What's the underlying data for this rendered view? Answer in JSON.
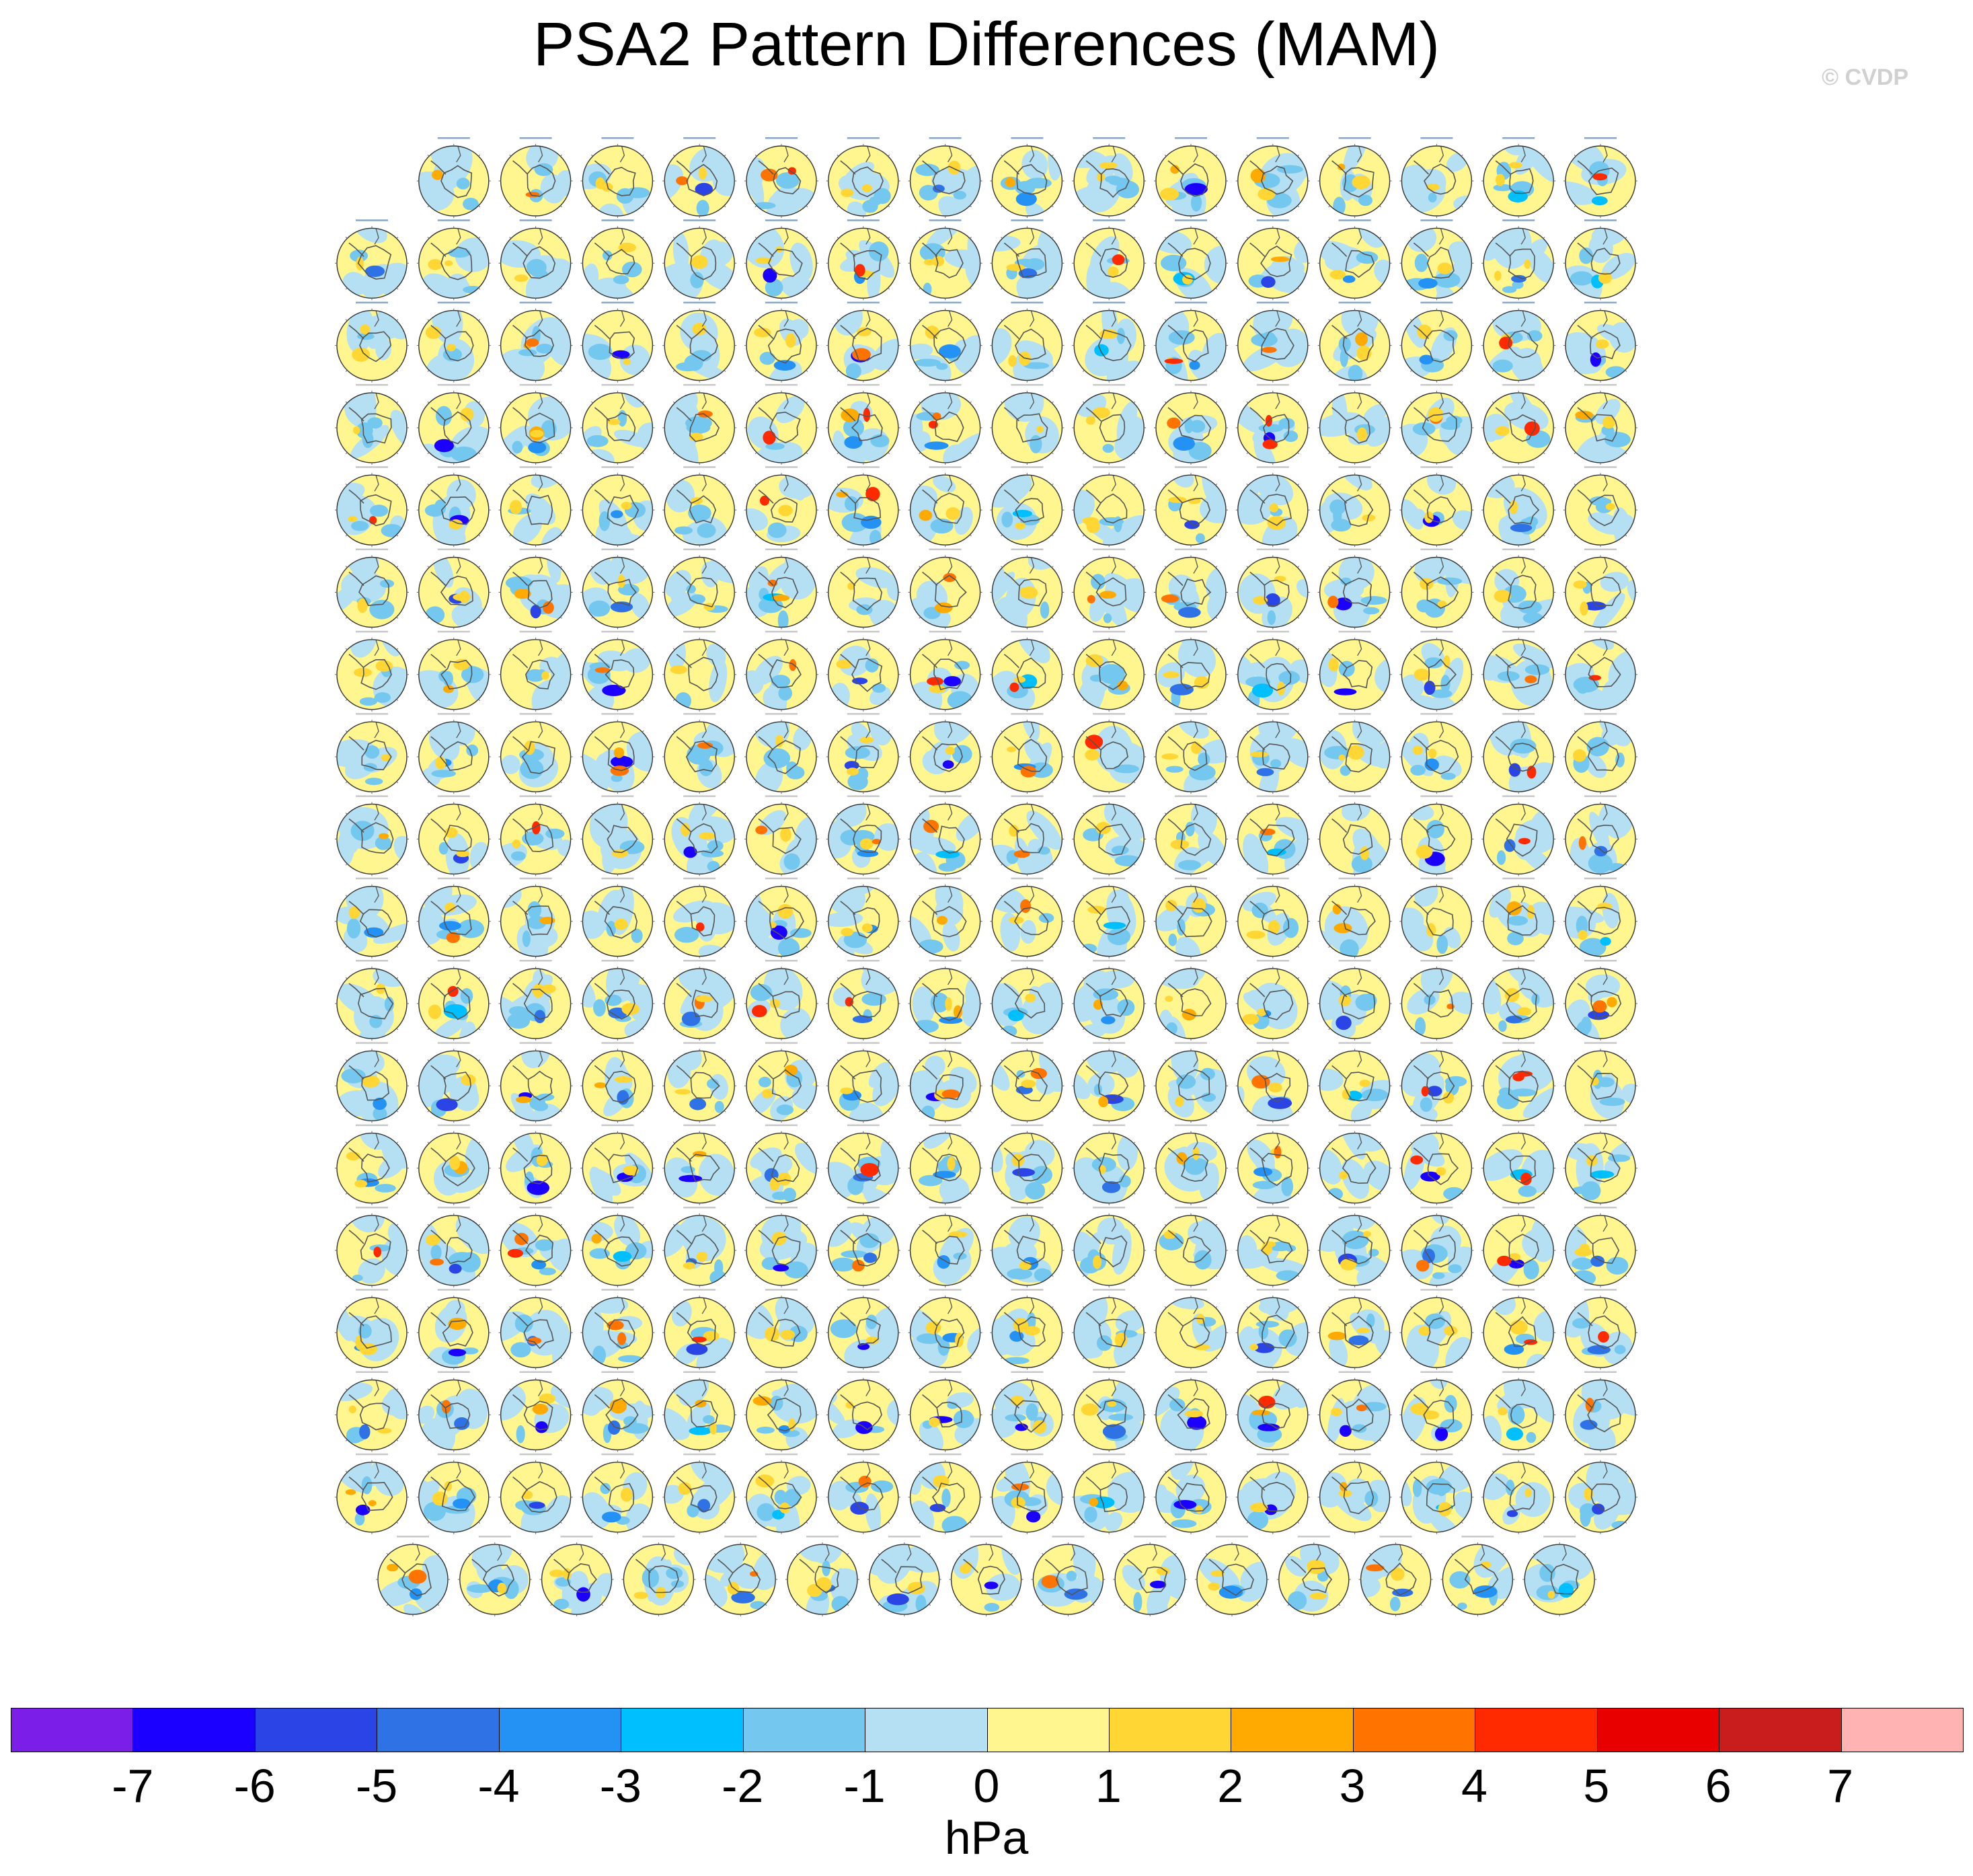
{
  "title": "PSA2 Pattern Differences (MAM)",
  "credit": "© CVDP",
  "units": "hPa",
  "colors": {
    "coastline": "#555555",
    "map_border": "#333333"
  },
  "chart_data": {
    "type": "heatmap",
    "description_kind": "panel grid of polar stereographic SLP difference maps",
    "panel_rows": [
      15,
      16,
      16,
      16,
      16,
      16,
      16,
      16,
      16,
      16,
      16,
      16,
      16,
      16,
      16,
      16,
      16,
      15
    ],
    "total_panels": 286,
    "colorbar": {
      "levels": [
        "-7",
        "-6",
        "-5",
        "-4",
        "-3",
        "-2",
        "-1",
        "0",
        "1",
        "2",
        "3",
        "4",
        "5",
        "6",
        "7"
      ],
      "colors": [
        "#7b1fe8",
        "#1c00ff",
        "#2a44e6",
        "#2f72e6",
        "#2491f5",
        "#00bfff",
        "#74c7ee",
        "#b5dff2",
        "#fff68f",
        "#ffd633",
        "#ffaa00",
        "#ff7300",
        "#ff2a00",
        "#e80000",
        "#c91c1c",
        "#ffb3b3"
      ],
      "units": "hPa"
    }
  }
}
